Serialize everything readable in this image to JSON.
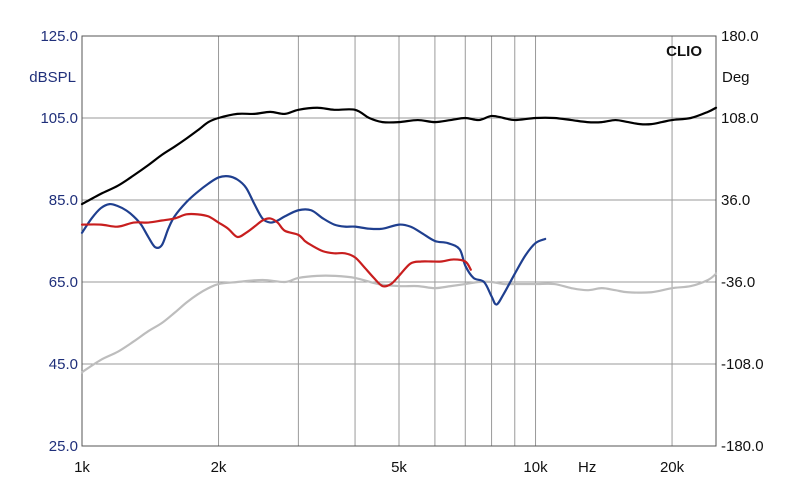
{
  "chart_data": {
    "type": "line",
    "brand_label": "CLIO",
    "left_axis": {
      "label": "dBSPL",
      "scale": "linear",
      "range": [
        25,
        125
      ],
      "ticks": [
        {
          "value": 125,
          "label": "125.0"
        },
        {
          "value": 105,
          "label": "105.0"
        },
        {
          "value": 85,
          "label": "85.0"
        },
        {
          "value": 65,
          "label": "65.0"
        },
        {
          "value": 45,
          "label": "45.0"
        },
        {
          "value": 25,
          "label": "25.0"
        }
      ]
    },
    "right_axis": {
      "label": "Deg",
      "scale": "linear",
      "range": [
        -180,
        180
      ],
      "ticks": [
        {
          "value": 180,
          "label": "180.0"
        },
        {
          "value": 108,
          "label": "108.0"
        },
        {
          "value": 36,
          "label": "36.0"
        },
        {
          "value": -36,
          "label": "-36.0"
        },
        {
          "value": -108,
          "label": "-108.0"
        },
        {
          "value": -180,
          "label": "-180.0"
        }
      ]
    },
    "x_axis": {
      "scale": "log",
      "range": [
        1000,
        25000
      ],
      "unit_label": "Hz",
      "ticks": [
        {
          "value": 1000,
          "label": "1k"
        },
        {
          "value": 2000,
          "label": "2k"
        },
        {
          "value": 5000,
          "label": "5k"
        },
        {
          "value": 10000,
          "label": "10k"
        },
        {
          "value": 20000,
          "label": "20k"
        }
      ],
      "gridlines": [
        1000,
        2000,
        3000,
        4000,
        5000,
        6000,
        7000,
        8000,
        9000,
        10000,
        20000
      ]
    },
    "grid": true,
    "colors": {
      "black_curve": "#000000",
      "gray_curve": "#bdbdbd",
      "blue_curve": "#1f3f8f",
      "red_curve": "#c81e1e",
      "grid": "#9a9a9a",
      "left_axis_text": "#1f2f7a"
    },
    "series": [
      {
        "color_key": "black_curve",
        "axis": "left",
        "points": [
          [
            1000,
            84
          ],
          [
            1100,
            86.5
          ],
          [
            1200,
            88.5
          ],
          [
            1300,
            91
          ],
          [
            1400,
            93.5
          ],
          [
            1500,
            96
          ],
          [
            1600,
            98
          ],
          [
            1700,
            100
          ],
          [
            1800,
            102
          ],
          [
            1900,
            104
          ],
          [
            2000,
            105
          ],
          [
            2200,
            106
          ],
          [
            2400,
            106
          ],
          [
            2600,
            106.5
          ],
          [
            2800,
            106
          ],
          [
            3000,
            107
          ],
          [
            3300,
            107.5
          ],
          [
            3600,
            107
          ],
          [
            4000,
            107
          ],
          [
            4300,
            105
          ],
          [
            4600,
            104
          ],
          [
            5000,
            104
          ],
          [
            5500,
            104.5
          ],
          [
            6000,
            104
          ],
          [
            6500,
            104.5
          ],
          [
            7000,
            105
          ],
          [
            7500,
            104.5
          ],
          [
            8000,
            105.5
          ],
          [
            8500,
            105
          ],
          [
            9000,
            104.5
          ],
          [
            10000,
            105
          ],
          [
            11000,
            105
          ],
          [
            12000,
            104.5
          ],
          [
            13000,
            104
          ],
          [
            14000,
            104
          ],
          [
            15000,
            104.5
          ],
          [
            16000,
            104
          ],
          [
            17000,
            103.5
          ],
          [
            18000,
            103.5
          ],
          [
            19000,
            104
          ],
          [
            20000,
            104.5
          ],
          [
            22000,
            105
          ],
          [
            24000,
            106.5
          ],
          [
            25000,
            107.5
          ]
        ]
      },
      {
        "color_key": "gray_curve",
        "axis": "left",
        "points": [
          [
            1000,
            43
          ],
          [
            1100,
            46
          ],
          [
            1200,
            48
          ],
          [
            1300,
            50.5
          ],
          [
            1400,
            53
          ],
          [
            1500,
            55
          ],
          [
            1600,
            57.5
          ],
          [
            1700,
            60
          ],
          [
            1800,
            62
          ],
          [
            1900,
            63.5
          ],
          [
            2000,
            64.5
          ],
          [
            2200,
            65
          ],
          [
            2500,
            65.5
          ],
          [
            2800,
            65
          ],
          [
            3000,
            66
          ],
          [
            3300,
            66.5
          ],
          [
            3600,
            66.5
          ],
          [
            4000,
            66
          ],
          [
            4500,
            64.5
          ],
          [
            5000,
            64
          ],
          [
            5500,
            64
          ],
          [
            6000,
            63.5
          ],
          [
            6500,
            64
          ],
          [
            7000,
            64.5
          ],
          [
            7500,
            65
          ],
          [
            8000,
            65
          ],
          [
            8500,
            64.5
          ],
          [
            9000,
            64.5
          ],
          [
            10000,
            64.5
          ],
          [
            11000,
            64.5
          ],
          [
            12000,
            63.5
          ],
          [
            13000,
            63
          ],
          [
            14000,
            63.5
          ],
          [
            15000,
            63
          ],
          [
            16000,
            62.5
          ],
          [
            18000,
            62.5
          ],
          [
            20000,
            63.5
          ],
          [
            22000,
            64
          ],
          [
            24000,
            65.5
          ],
          [
            25000,
            67
          ]
        ]
      },
      {
        "color_key": "blue_curve",
        "axis": "left",
        "points": [
          [
            1000,
            77
          ],
          [
            1050,
            80.5
          ],
          [
            1100,
            83
          ],
          [
            1150,
            84
          ],
          [
            1200,
            83.5
          ],
          [
            1250,
            82.5
          ],
          [
            1300,
            81
          ],
          [
            1350,
            79
          ],
          [
            1400,
            76
          ],
          [
            1450,
            73.5
          ],
          [
            1500,
            74
          ],
          [
            1550,
            78
          ],
          [
            1600,
            81
          ],
          [
            1700,
            84.5
          ],
          [
            1800,
            87
          ],
          [
            1900,
            89
          ],
          [
            2000,
            90.5
          ],
          [
            2100,
            90.8
          ],
          [
            2200,
            90
          ],
          [
            2300,
            88
          ],
          [
            2400,
            84
          ],
          [
            2500,
            80.5
          ],
          [
            2600,
            79.5
          ],
          [
            2700,
            80
          ],
          [
            2800,
            81
          ],
          [
            3000,
            82.5
          ],
          [
            3200,
            82.5
          ],
          [
            3400,
            80.5
          ],
          [
            3600,
            79
          ],
          [
            3800,
            78.5
          ],
          [
            4000,
            78.5
          ],
          [
            4300,
            78
          ],
          [
            4600,
            78
          ],
          [
            5000,
            79
          ],
          [
            5300,
            78.5
          ],
          [
            5600,
            77
          ],
          [
            6000,
            75
          ],
          [
            6400,
            74.5
          ],
          [
            6800,
            73
          ],
          [
            7000,
            69
          ],
          [
            7300,
            66
          ],
          [
            7700,
            65
          ],
          [
            8000,
            61.5
          ],
          [
            8200,
            59.5
          ],
          [
            8500,
            62
          ],
          [
            9000,
            67
          ],
          [
            9500,
            71.5
          ],
          [
            10000,
            74.5
          ],
          [
            10500,
            75.5
          ]
        ]
      },
      {
        "color_key": "red_curve",
        "axis": "left",
        "points": [
          [
            1000,
            79
          ],
          [
            1100,
            79
          ],
          [
            1200,
            78.5
          ],
          [
            1300,
            79.5
          ],
          [
            1400,
            79.5
          ],
          [
            1500,
            80
          ],
          [
            1600,
            80.5
          ],
          [
            1700,
            81.5
          ],
          [
            1800,
            81.5
          ],
          [
            1900,
            81
          ],
          [
            2000,
            79.5
          ],
          [
            2100,
            78
          ],
          [
            2200,
            76
          ],
          [
            2300,
            77
          ],
          [
            2400,
            78.5
          ],
          [
            2500,
            80
          ],
          [
            2600,
            80.5
          ],
          [
            2700,
            79.5
          ],
          [
            2800,
            77.5
          ],
          [
            3000,
            76.5
          ],
          [
            3100,
            75
          ],
          [
            3200,
            74
          ],
          [
            3400,
            72.5
          ],
          [
            3600,
            72
          ],
          [
            3800,
            72
          ],
          [
            4000,
            71
          ],
          [
            4200,
            68.5
          ],
          [
            4400,
            66
          ],
          [
            4600,
            64
          ],
          [
            4800,
            64.5
          ],
          [
            5000,
            66.5
          ],
          [
            5300,
            69.5
          ],
          [
            5600,
            70
          ],
          [
            5900,
            70
          ],
          [
            6200,
            70
          ],
          [
            6600,
            70.5
          ],
          [
            7000,
            70
          ],
          [
            7200,
            68
          ]
        ]
      }
    ]
  }
}
